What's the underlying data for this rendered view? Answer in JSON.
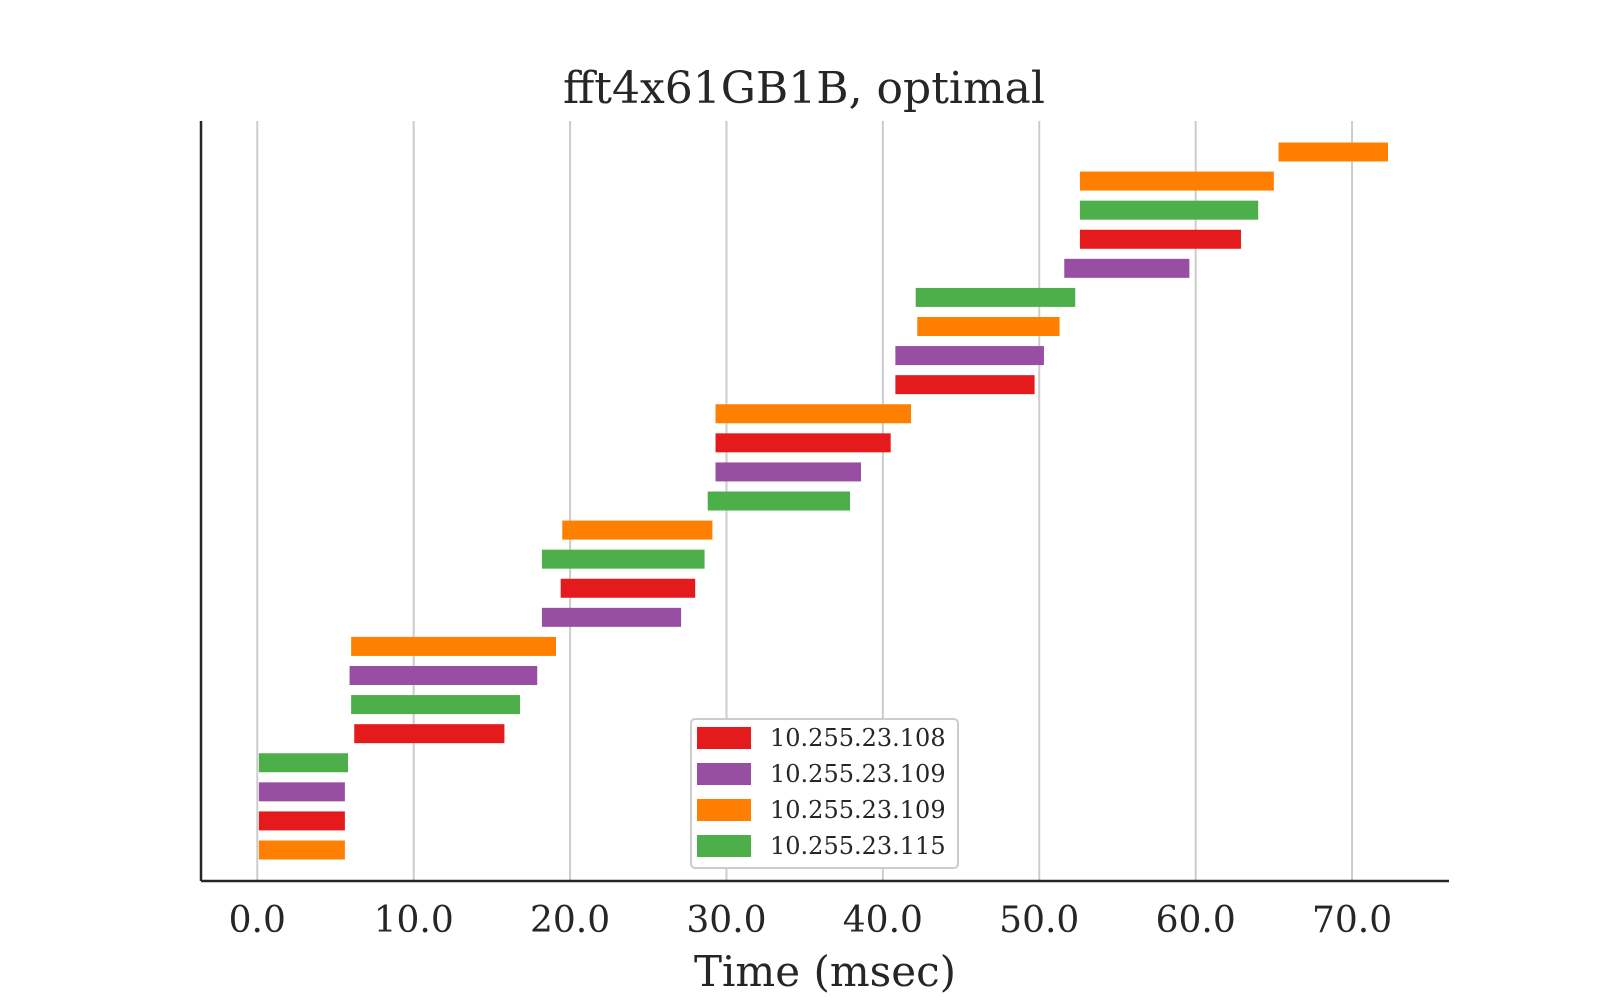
{
  "chart_data": {
    "type": "gantt",
    "title": "fft4x61GB1B, optimal",
    "xlabel": "Time (msec)",
    "ylabel": "",
    "xlim": [
      -3.6,
      76.2
    ],
    "xticks": [
      0,
      10,
      20,
      30,
      40,
      50,
      60,
      70
    ],
    "xtick_labels": [
      "0.0",
      "10.0",
      "20.0",
      "30.0",
      "40.0",
      "50.0",
      "60.0",
      "70.0"
    ],
    "grid": "vertical",
    "legend_position": "bottom-center",
    "series": [
      {
        "label": "10.255.23.108",
        "color": "#e41a1c"
      },
      {
        "label": "10.255.23.109",
        "color": "#984ea3"
      },
      {
        "label": "10.255.23.109",
        "color": "#ff7f00"
      },
      {
        "label": "10.255.23.115",
        "color": "#4daf4a"
      }
    ],
    "tasks": [
      {
        "series": 2,
        "start": 0.1,
        "end": 5.6
      },
      {
        "series": 0,
        "start": 0.1,
        "end": 5.6
      },
      {
        "series": 1,
        "start": 0.1,
        "end": 5.6
      },
      {
        "series": 3,
        "start": 0.1,
        "end": 5.8
      },
      {
        "series": 0,
        "start": 6.2,
        "end": 15.8
      },
      {
        "series": 3,
        "start": 6.0,
        "end": 16.8
      },
      {
        "series": 1,
        "start": 5.9,
        "end": 17.9
      },
      {
        "series": 2,
        "start": 6.0,
        "end": 19.1
      },
      {
        "series": 1,
        "start": 18.2,
        "end": 27.1
      },
      {
        "series": 0,
        "start": 19.4,
        "end": 28.0
      },
      {
        "series": 3,
        "start": 18.2,
        "end": 28.6
      },
      {
        "series": 2,
        "start": 19.5,
        "end": 29.1
      },
      {
        "series": 3,
        "start": 28.8,
        "end": 37.9
      },
      {
        "series": 1,
        "start": 29.3,
        "end": 38.6
      },
      {
        "series": 0,
        "start": 29.3,
        "end": 40.5
      },
      {
        "series": 2,
        "start": 29.3,
        "end": 41.8
      },
      {
        "series": 0,
        "start": 40.8,
        "end": 49.7
      },
      {
        "series": 1,
        "start": 40.8,
        "end": 50.3
      },
      {
        "series": 2,
        "start": 42.2,
        "end": 51.3
      },
      {
        "series": 3,
        "start": 42.1,
        "end": 52.3
      },
      {
        "series": 1,
        "start": 51.6,
        "end": 59.6
      },
      {
        "series": 0,
        "start": 52.6,
        "end": 62.9
      },
      {
        "series": 3,
        "start": 52.6,
        "end": 64.0
      },
      {
        "series": 2,
        "start": 52.6,
        "end": 65.0
      },
      {
        "series": 2,
        "start": 65.3,
        "end": 72.3
      }
    ]
  }
}
